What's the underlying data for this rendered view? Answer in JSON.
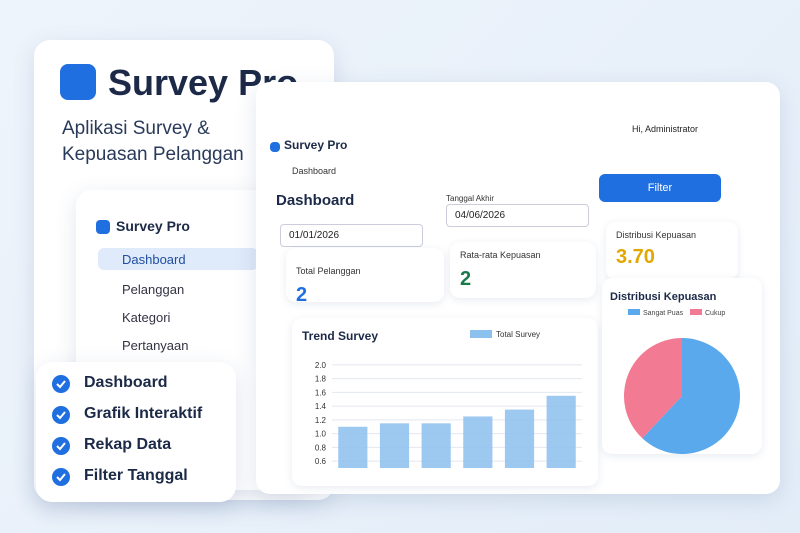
{
  "brand": {
    "title": "Survey Pro",
    "tagline": [
      "Aplikasi Survey &",
      "Kepuasan Pelanggan"
    ]
  },
  "features": [
    "Dashboard",
    "Grafik Interaktif",
    "Rekap Data",
    "Filter Tanggal"
  ],
  "sidebar": {
    "brand": "Survey Pro",
    "menu": [
      "Dashboard",
      "Pelanggan",
      "Kategori",
      "Pertanyaan"
    ]
  },
  "app": {
    "brand": "Survey Pro",
    "user": "Hi, Administrator",
    "breadcrumb": "Dashboard",
    "page_title": "Dashboard",
    "end_label": "Tanggal Akhir",
    "start_date": "01/01/2026",
    "end_date": "04/06/2026",
    "filter_button": "Filter"
  },
  "stats": [
    {
      "label": "Total Pelanggan",
      "value": "2"
    },
    {
      "label": "Rata-rata Kepuasan",
      "value": "2"
    },
    {
      "label": "Distribusi Kepuasan",
      "value": "3.70"
    }
  ],
  "charts": [
    {
      "type": "bar",
      "title": "Trend Survey",
      "categories": [
        null,
        null,
        null,
        null,
        null,
        null
      ],
      "series": [
        {
          "name": "Total Survey",
          "color": "#8cc0ee",
          "values": [
            1.1,
            1.15,
            1.15,
            1.25,
            1.35,
            1.55
          ]
        }
      ],
      "ylim": [
        0.5,
        2.1
      ],
      "yticks": [
        0.6,
        0.8,
        {
          "value": 1,
          "label": "1.0"
        },
        1.2,
        1.4,
        1.6,
        1.8,
        {
          "value": 2,
          "label": "2.0"
        }
      ],
      "grid": true
    },
    {
      "type": "pie",
      "title": "Distribusi Kepuasan",
      "categories": [
        "Sangat Puas",
        "Cukup"
      ],
      "values": [
        62,
        38
      ],
      "colors": [
        "#5aa9ec",
        "#f27a93"
      ]
    }
  ]
}
